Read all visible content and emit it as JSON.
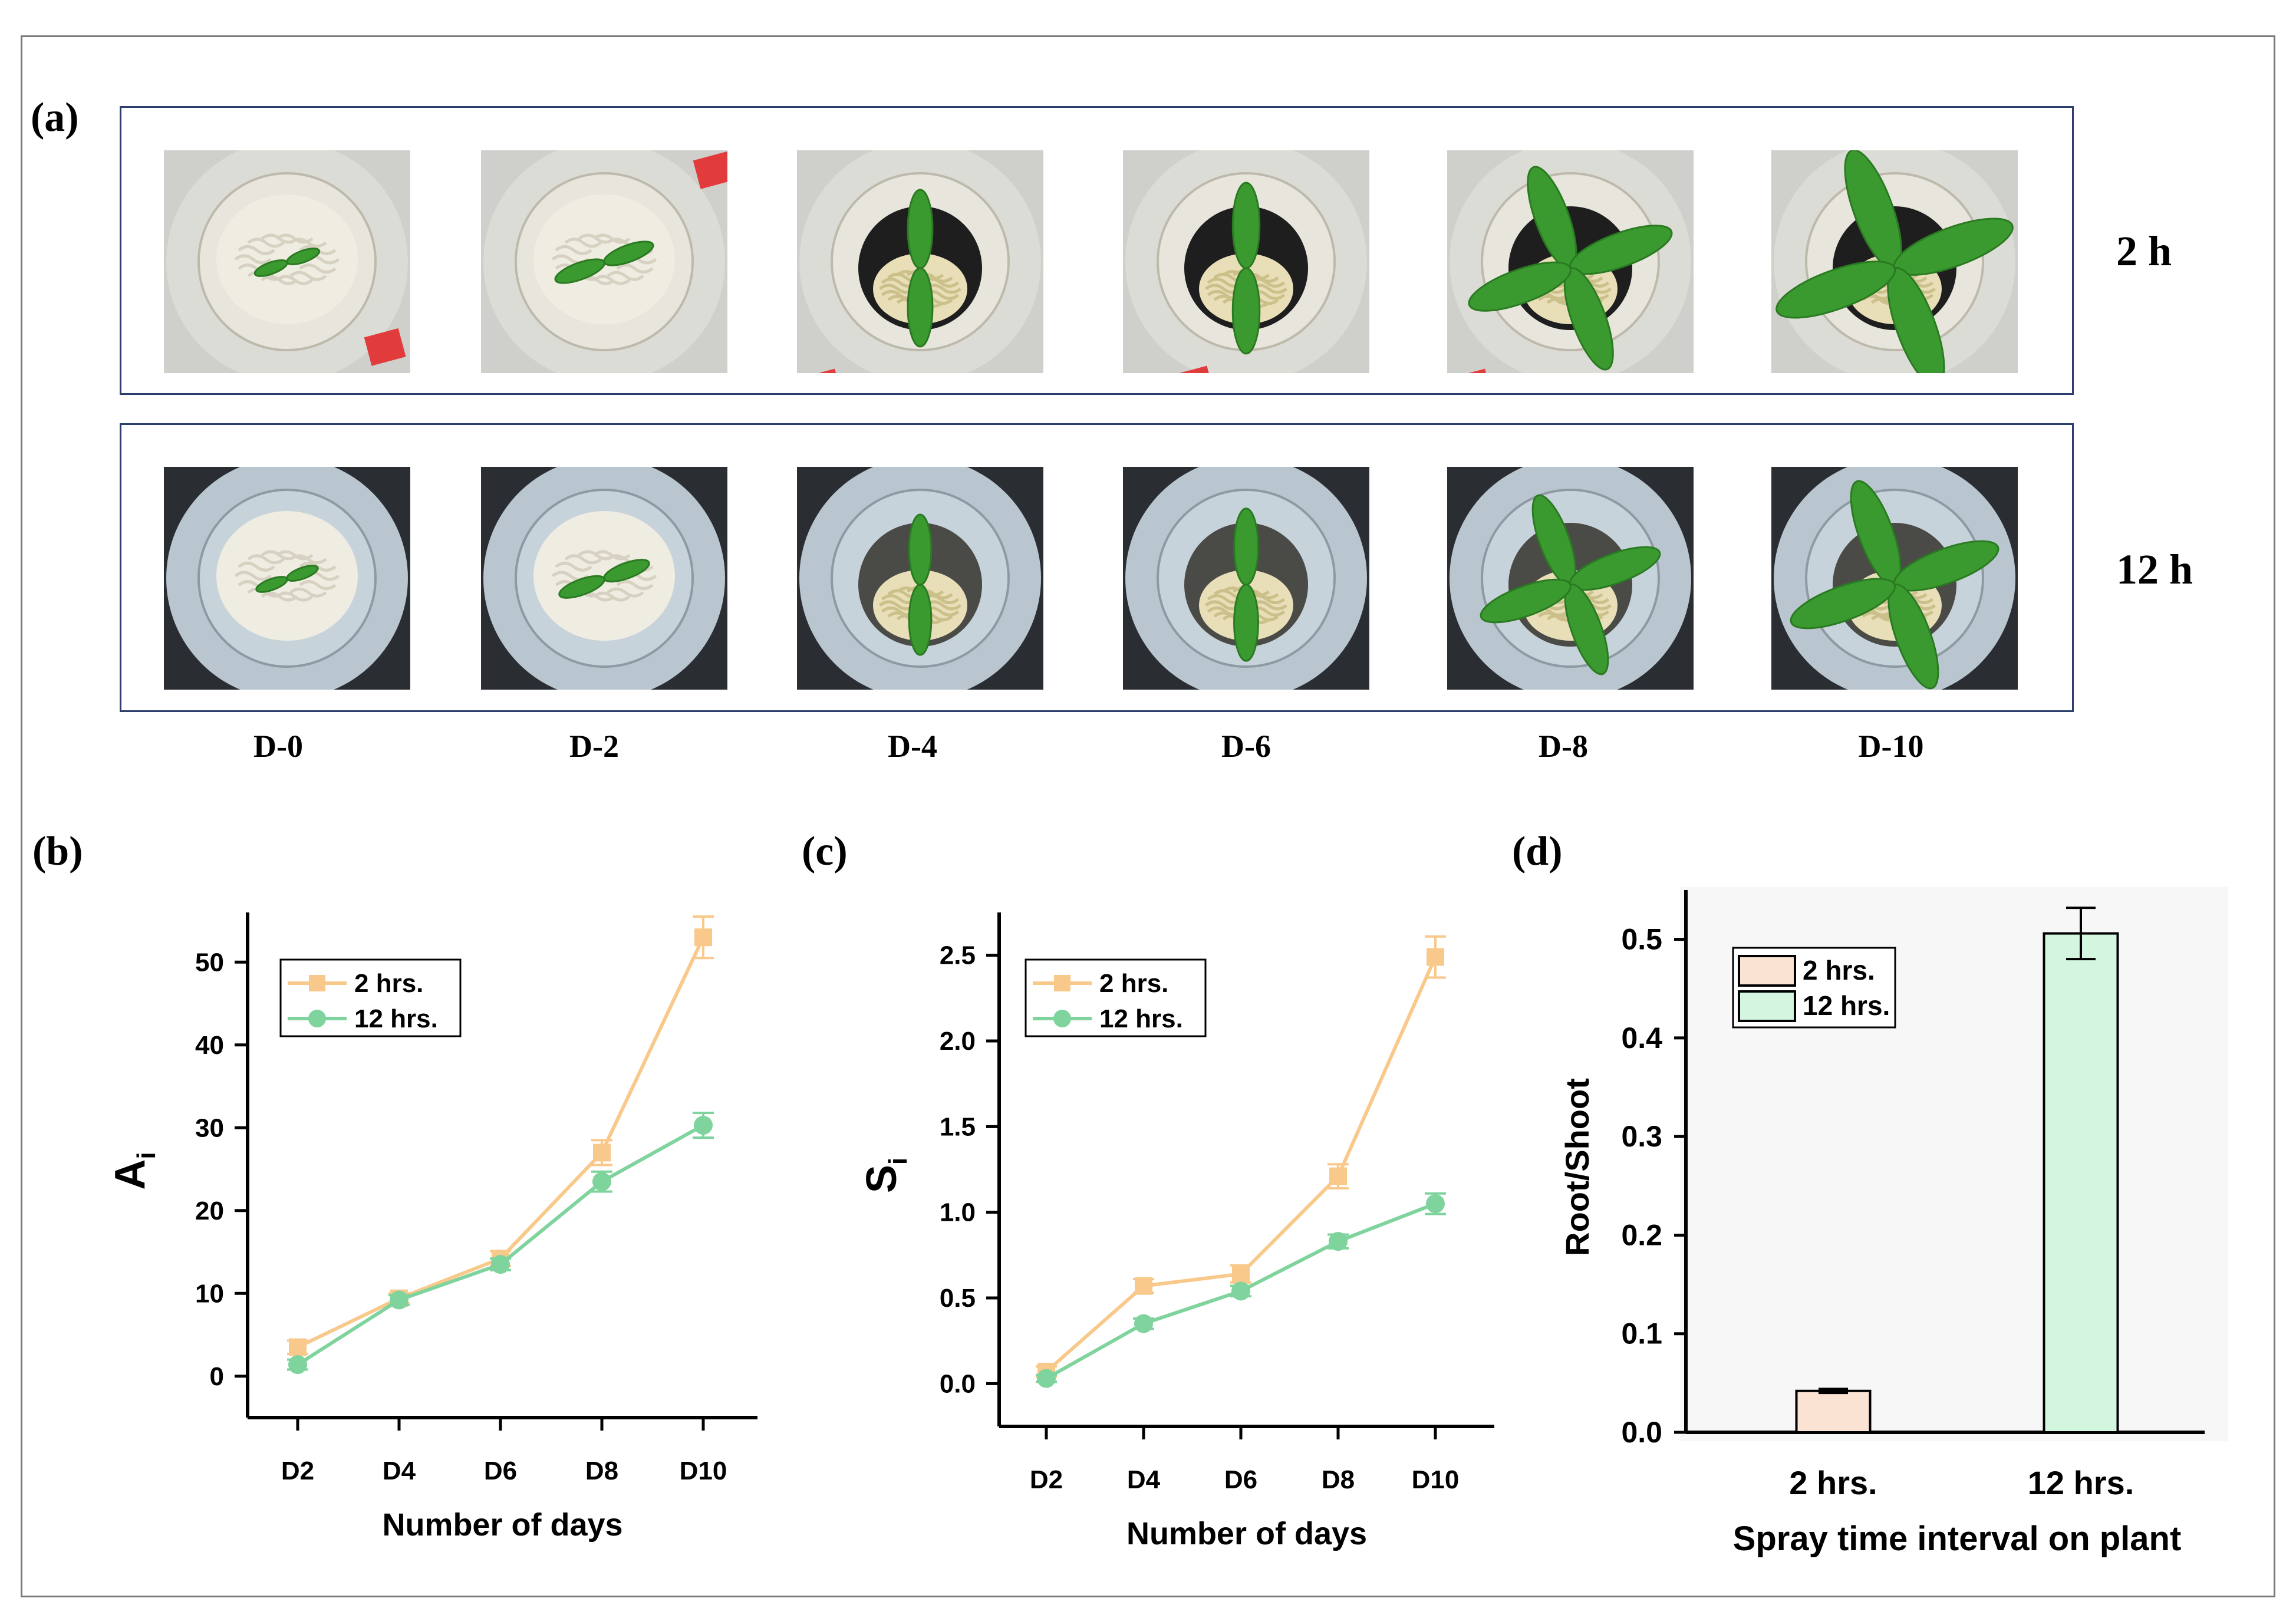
{
  "panels": {
    "a": "(a)",
    "b": "(b)",
    "c": "(c)",
    "d": "(d)"
  },
  "photos": {
    "row_labels": [
      "2 h",
      "12 h"
    ],
    "day_labels": [
      "D-0",
      "D-2",
      "D-4",
      "D-6",
      "D-8",
      "D-10"
    ]
  },
  "colors": {
    "series_2h": "#f8c98b",
    "series_12h": "#7fd39c",
    "bar_2h": "#fbe3d3",
    "bar_12h": "#d4f5e0",
    "box_border": "#2c3e6b"
  },
  "chart_data": [
    {
      "id": "b",
      "type": "line",
      "categories": [
        "D2",
        "D4",
        "D6",
        "D8",
        "D10"
      ],
      "series": [
        {
          "name": "2 hrs.",
          "marker": "square",
          "values": [
            3.5,
            9.4,
            14.2,
            27.0,
            53.0
          ],
          "errors": [
            0.8,
            0.6,
            0.9,
            1.5,
            2.5
          ]
        },
        {
          "name": "12 hrs.",
          "marker": "circle",
          "values": [
            1.4,
            9.2,
            13.5,
            23.5,
            30.3
          ],
          "errors": [
            0.6,
            0.6,
            0.7,
            1.2,
            1.5
          ]
        }
      ],
      "xlabel": "Number of days",
      "ylabel": "A",
      "ylabel_sub": "i",
      "ylim": [
        -5,
        56
      ],
      "yticks": [
        0,
        10,
        20,
        30,
        40,
        50
      ],
      "ytick_labels": [
        "0",
        "10",
        "20",
        "30",
        "40",
        "50"
      ],
      "legend": "top-left"
    },
    {
      "id": "c",
      "type": "line",
      "categories": [
        "D2",
        "D4",
        "D6",
        "D8",
        "D10"
      ],
      "series": [
        {
          "name": "2 hrs.",
          "marker": "square",
          "values": [
            0.07,
            0.57,
            0.64,
            1.21,
            2.49
          ],
          "errors": [
            0.03,
            0.04,
            0.05,
            0.07,
            0.12
          ]
        },
        {
          "name": "12 hrs.",
          "marker": "circle",
          "values": [
            0.03,
            0.35,
            0.54,
            0.83,
            1.05
          ],
          "errors": [
            0.02,
            0.03,
            0.03,
            0.04,
            0.06
          ]
        }
      ],
      "xlabel": "Number of days",
      "ylabel": "S",
      "ylabel_sub": "i",
      "ylim": [
        -0.25,
        2.75
      ],
      "yticks": [
        0.0,
        0.5,
        1.0,
        1.5,
        2.0,
        2.5
      ],
      "ytick_labels": [
        "0.0",
        "0.5",
        "1.0",
        "1.5",
        "2.0",
        "2.5"
      ],
      "legend": "top-left"
    },
    {
      "id": "d",
      "type": "bar",
      "categories": [
        "2 hrs.",
        "12 hrs."
      ],
      "values": [
        0.042,
        0.506
      ],
      "errors": [
        0.002,
        0.026
      ],
      "legend_labels": [
        "2 hrs.",
        "12 hrs."
      ],
      "xlabel": "Spray time interval on plant",
      "ylabel": "Root/Shoot",
      "ylim": [
        0,
        0.55
      ],
      "yticks": [
        0.0,
        0.1,
        0.2,
        0.3,
        0.4,
        0.5
      ],
      "ytick_labels": [
        "0.0",
        "0.1",
        "0.2",
        "0.3",
        "0.4",
        "0.5"
      ],
      "legend": "top-left"
    }
  ]
}
